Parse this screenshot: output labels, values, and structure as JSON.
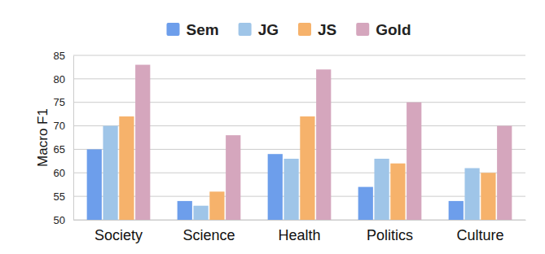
{
  "chart_data": {
    "type": "bar",
    "y_label": "Macro F1",
    "categories": [
      "Society",
      "Science",
      "Health",
      "Politics",
      "Culture"
    ],
    "series": [
      {
        "name": "Sem",
        "color": "#6d9eeb",
        "values": [
          65,
          54,
          64,
          57,
          54
        ]
      },
      {
        "name": "JG",
        "color": "#9fc5e8",
        "values": [
          70,
          53,
          63,
          63,
          61
        ]
      },
      {
        "name": "JS",
        "color": "#f6b26b",
        "values": [
          72,
          56,
          72,
          62,
          60
        ]
      },
      {
        "name": "Gold",
        "color": "#d5a6bd",
        "values": [
          83,
          68,
          82,
          75,
          70
        ]
      }
    ],
    "ylim": [
      50,
      85
    ],
    "yticks": [
      50,
      55,
      60,
      65,
      70,
      75,
      80,
      85
    ],
    "grid": true,
    "legend": "top"
  }
}
